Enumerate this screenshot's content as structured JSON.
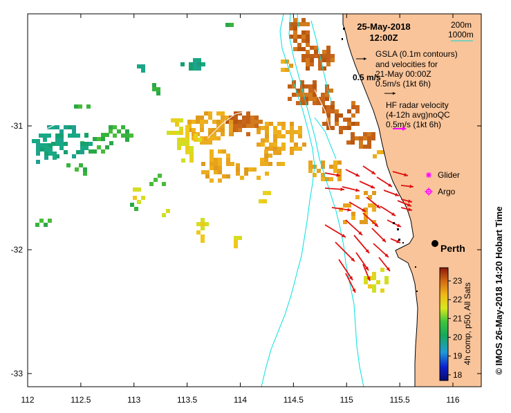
{
  "map": {
    "title_date": "25-May-2018",
    "title_time": "12:00Z",
    "contours_legend": {
      "label_200m": "200m",
      "label_1000m": "1000m"
    },
    "gsla": {
      "line1": "GSLA (0.1m contours)",
      "line2": "and velocities for",
      "line3": "21-May 00:00Z",
      "scale": "0.5m/s (1kt 6h)",
      "side_label": "0.5 m/s"
    },
    "hf_radar": {
      "line1": "HF radar velocity",
      "line2": "(4-12h avg)noQC",
      "scale": "0.5m/s (1kt 6h)"
    },
    "markers": {
      "glider": "Glider",
      "argo": "Argo",
      "city": "Perth"
    },
    "x_ticks": [
      "112",
      "112.5",
      "113",
      "113.5",
      "114",
      "114.5",
      "115",
      "115.5",
      "116"
    ],
    "y_ticks": [
      "-31",
      "-32",
      "-33"
    ],
    "colorbar": {
      "label": "4h comp, p50, All Sats",
      "ticks": [
        "23",
        "22",
        "21",
        "20",
        "19",
        "18"
      ],
      "min": 17.7,
      "max": 23.7
    },
    "credit": "© IMOS 26-May-2018 14:20 Hobart Time",
    "colors": {
      "land": "#f9c49a",
      "arrow": "#e01010",
      "hf_arrow": "#ff00ff",
      "contour": "#00e5e5"
    }
  }
}
